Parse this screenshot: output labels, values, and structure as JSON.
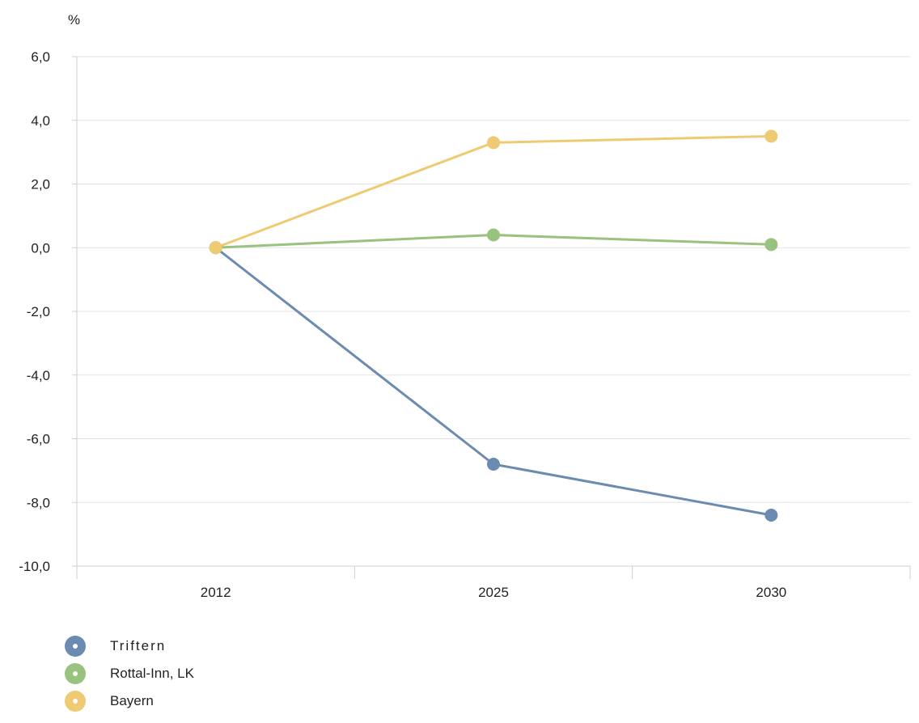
{
  "chart_data": {
    "type": "line",
    "unit_label": "%",
    "categories": [
      "2012",
      "2025",
      "2030"
    ],
    "ylim": [
      -10,
      6
    ],
    "yticks": [
      "6,0",
      "4,0",
      "2,0",
      "0,0",
      "-2,0",
      "-4,0",
      "-6,0",
      "-8,0",
      "-10,0"
    ],
    "ytick_values": [
      6,
      4,
      2,
      0,
      -2,
      -4,
      -6,
      -8,
      -10
    ],
    "grid": true,
    "legend_position": "bottom-left",
    "series": [
      {
        "name": "Triftern",
        "color": "#6b8bb1",
        "values": [
          0,
          -6.8,
          -8.4
        ]
      },
      {
        "name": "Rottal-Inn, LK",
        "color": "#98c27e",
        "values": [
          0,
          0.4,
          0.1
        ]
      },
      {
        "name": "Bayern",
        "color": "#eecb72",
        "values": [
          0,
          3.3,
          3.5
        ]
      }
    ]
  }
}
